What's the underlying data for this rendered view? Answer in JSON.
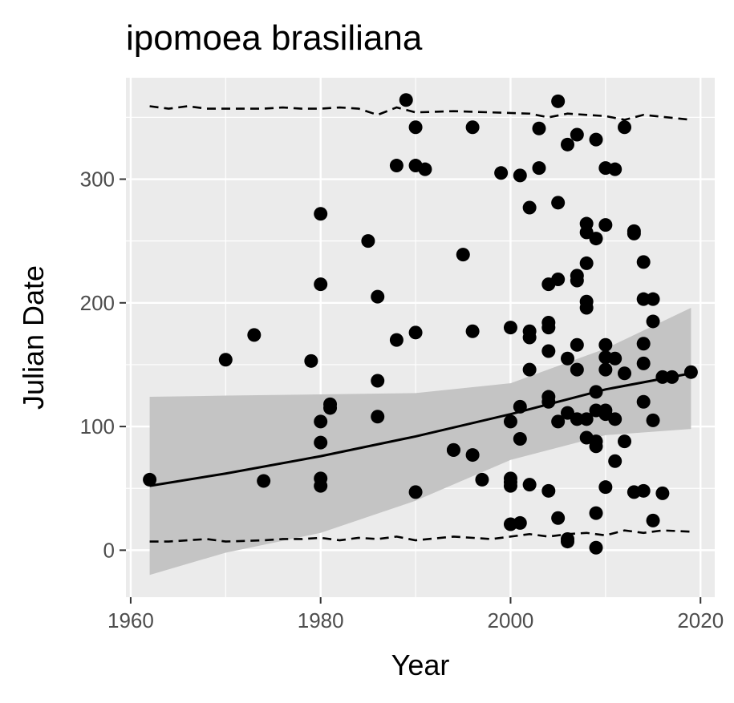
{
  "chart_data": {
    "type": "scatter",
    "title": "ipomoea brasiliana",
    "xlabel": "Year",
    "ylabel": "Julian Date",
    "xlim": [
      1959.5,
      2021.5
    ],
    "ylim": [
      -38,
      382
    ],
    "x_ticks": [
      1960,
      1980,
      2000,
      2020
    ],
    "y_ticks": [
      0,
      100,
      200,
      300
    ],
    "grid": true,
    "legend": "none",
    "colors": {
      "panel": "#ebebeb",
      "grid": "#ffffff",
      "points": "#000000",
      "ribbon": "#c4c4c4",
      "tick_text": "#4d4d4d"
    },
    "points": [
      [
        1962,
        57
      ],
      [
        1970,
        154
      ],
      [
        1973,
        174
      ],
      [
        1974,
        56
      ],
      [
        1979,
        153
      ],
      [
        1980,
        272
      ],
      [
        1980,
        215
      ],
      [
        1980,
        104
      ],
      [
        1980,
        87
      ],
      [
        1980,
        58
      ],
      [
        1980,
        52
      ],
      [
        1981,
        118
      ],
      [
        1981,
        115
      ],
      [
        1985,
        250
      ],
      [
        1986,
        205
      ],
      [
        1986,
        137
      ],
      [
        1986,
        108
      ],
      [
        1988,
        311
      ],
      [
        1988,
        170
      ],
      [
        1989,
        364
      ],
      [
        1990,
        342
      ],
      [
        1990,
        311
      ],
      [
        1990,
        176
      ],
      [
        1990,
        47
      ],
      [
        1991,
        308
      ],
      [
        1994,
        81
      ],
      [
        1994,
        81
      ],
      [
        1995,
        239
      ],
      [
        1996,
        342
      ],
      [
        1996,
        177
      ],
      [
        1996,
        77
      ],
      [
        1997,
        57
      ],
      [
        1999,
        305
      ],
      [
        2000,
        180
      ],
      [
        2000,
        104
      ],
      [
        2000,
        58
      ],
      [
        2000,
        55
      ],
      [
        2000,
        52
      ],
      [
        2000,
        21
      ],
      [
        2001,
        303
      ],
      [
        2001,
        116
      ],
      [
        2001,
        90
      ],
      [
        2001,
        22
      ],
      [
        2002,
        277
      ],
      [
        2002,
        177
      ],
      [
        2002,
        172
      ],
      [
        2002,
        146
      ],
      [
        2002,
        53
      ],
      [
        2003,
        341
      ],
      [
        2003,
        309
      ],
      [
        2004,
        215
      ],
      [
        2004,
        184
      ],
      [
        2004,
        180
      ],
      [
        2004,
        161
      ],
      [
        2004,
        124
      ],
      [
        2004,
        120
      ],
      [
        2004,
        48
      ],
      [
        2005,
        363
      ],
      [
        2005,
        281
      ],
      [
        2005,
        219
      ],
      [
        2005,
        104
      ],
      [
        2005,
        26
      ],
      [
        2006,
        328
      ],
      [
        2006,
        155
      ],
      [
        2006,
        111
      ],
      [
        2006,
        9
      ],
      [
        2006,
        7
      ],
      [
        2007,
        336
      ],
      [
        2007,
        222
      ],
      [
        2007,
        218
      ],
      [
        2007,
        166
      ],
      [
        2007,
        146
      ],
      [
        2007,
        106
      ],
      [
        2008,
        264
      ],
      [
        2008,
        257
      ],
      [
        2008,
        232
      ],
      [
        2008,
        201
      ],
      [
        2008,
        196
      ],
      [
        2008,
        106
      ],
      [
        2008,
        91
      ],
      [
        2009,
        332
      ],
      [
        2009,
        252
      ],
      [
        2009,
        128
      ],
      [
        2009,
        113
      ],
      [
        2009,
        88
      ],
      [
        2009,
        84
      ],
      [
        2009,
        30
      ],
      [
        2009,
        2
      ],
      [
        2010,
        309
      ],
      [
        2010,
        263
      ],
      [
        2010,
        166
      ],
      [
        2010,
        156
      ],
      [
        2010,
        146
      ],
      [
        2010,
        113
      ],
      [
        2010,
        110
      ],
      [
        2010,
        51
      ],
      [
        2011,
        308
      ],
      [
        2011,
        155
      ],
      [
        2011,
        106
      ],
      [
        2011,
        72
      ],
      [
        2012,
        342
      ],
      [
        2012,
        143
      ],
      [
        2012,
        88
      ],
      [
        2013,
        258
      ],
      [
        2013,
        256
      ],
      [
        2013,
        47
      ],
      [
        2014,
        233
      ],
      [
        2014,
        203
      ],
      [
        2014,
        167
      ],
      [
        2014,
        151
      ],
      [
        2014,
        120
      ],
      [
        2014,
        48
      ],
      [
        2015,
        203
      ],
      [
        2015,
        185
      ],
      [
        2015,
        105
      ],
      [
        2015,
        24
      ],
      [
        2016,
        140
      ],
      [
        2016,
        46
      ],
      [
        2017,
        140
      ],
      [
        2019,
        144
      ]
    ],
    "trend": {
      "x": [
        1962,
        1970,
        1980,
        1990,
        2000,
        2010,
        2019
      ],
      "y": [
        52,
        62,
        76,
        92,
        110,
        130,
        143
      ]
    },
    "ribbon": {
      "x": [
        1962,
        1970,
        1980,
        1990,
        2000,
        2010,
        2019
      ],
      "lower": [
        -20,
        -2,
        14,
        40,
        73,
        93,
        98
      ],
      "upper": [
        124,
        125,
        126,
        127,
        135,
        163,
        196
      ]
    },
    "upper_dashed": {
      "x": [
        1962,
        1964,
        1966,
        1968,
        1970,
        1974,
        1976,
        1978,
        1980,
        1982,
        1984,
        1986,
        1988,
        1990,
        1994,
        1998,
        2002,
        2004,
        2006,
        2008,
        2010,
        2012,
        2014,
        2019
      ],
      "y": [
        359,
        357,
        359,
        357,
        357,
        357,
        358,
        357,
        357,
        358,
        357,
        352,
        358,
        354,
        355,
        354,
        353,
        350,
        353,
        352,
        351,
        348,
        352,
        348
      ]
    },
    "lower_dashed": {
      "x": [
        1962,
        1964,
        1966,
        1968,
        1970,
        1974,
        1976,
        1978,
        1980,
        1982,
        1984,
        1986,
        1988,
        1990,
        1994,
        1998,
        2002,
        2004,
        2006,
        2008,
        2010,
        2012,
        2014,
        2016,
        2019
      ],
      "y": [
        7,
        7,
        8,
        9,
        7,
        8,
        9,
        9,
        10,
        8,
        10,
        9,
        11,
        8,
        11,
        9,
        13,
        11,
        13,
        14,
        12,
        16,
        14,
        16,
        15
      ]
    }
  }
}
